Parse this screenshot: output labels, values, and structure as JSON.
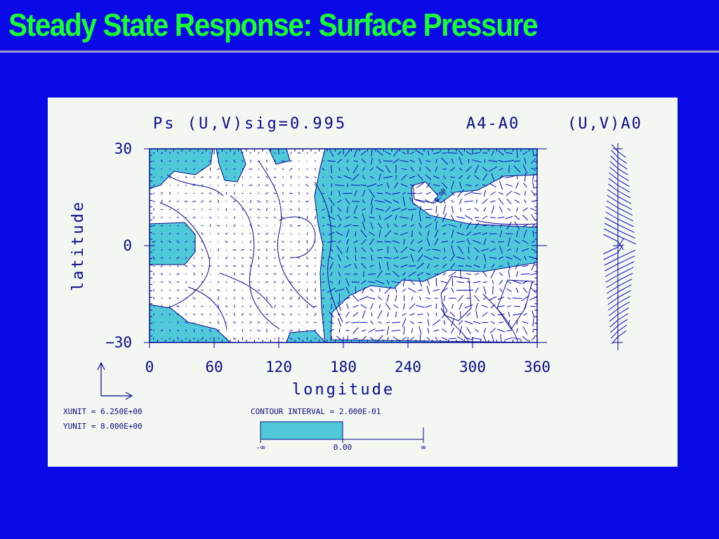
{
  "slide": {
    "title": "Steady State Response: Surface Pressure",
    "colors": {
      "background": "#0a0ae6",
      "title": "#19ff33",
      "rule": "#9a9ac8",
      "panel": "#f2f7f2",
      "shade": "#4fc8d8",
      "line": "#0a0a8c"
    }
  },
  "figure": {
    "plot_title": "Ps (U,V)sig=0.995",
    "experiment_label": "A4-A0",
    "side_panel_label": "(U,V)A0",
    "x_axis_label": "longitude",
    "y_axis_label": "latitude",
    "x_ticks": [
      "0",
      "60",
      "120",
      "180",
      "240",
      "300",
      "360"
    ],
    "y_ticks": [
      "30",
      "0",
      "−30"
    ],
    "xunit": "XUNIT = 6.250E+00",
    "yunit": "YUNIT = 8.000E+00",
    "contour_interval": "CONTOUR INTERVAL = 2.000E-01",
    "legend_min": "-∞",
    "legend_mid": "0.00",
    "legend_max": "∞",
    "contour_label": "0.00",
    "x_range": [
      0,
      360
    ],
    "y_range": [
      -30,
      30
    ]
  }
}
